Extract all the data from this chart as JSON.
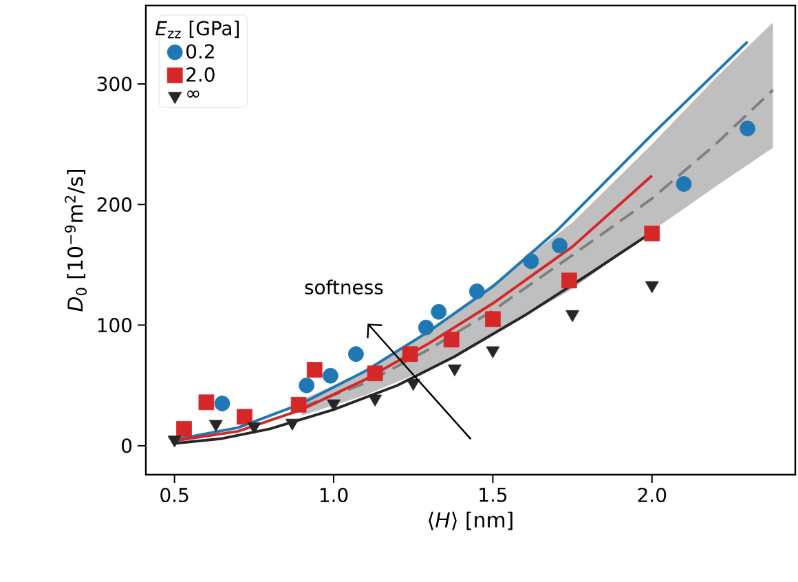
{
  "chart_data": {
    "type": "scatter",
    "xlabel": "⟨*H*⟩ [nm]",
    "ylabel": "*D*$_{0}$ [10$^{−9}$m$^{2}$/s]",
    "legend_title": "*E*$_{zz}$ [GPa]",
    "annotations": [
      "softness"
    ],
    "xlim": [
      0.41,
      2.45
    ],
    "ylim": [
      -24,
      365
    ],
    "xticks": [
      0.5,
      {
        "value": 1.0,
        "label": "1.0"
      },
      1.5,
      {
        "value": 2.0,
        "label": "2.0"
      }
    ],
    "yticks": [
      0,
      100,
      200,
      300
    ],
    "grid": false,
    "legend": "top left",
    "series": [
      {
        "type": "line",
        "color": "#808080",
        "line_style": "dashed",
        "x": [
          0.9,
          1.1,
          1.3,
          1.5,
          1.75,
          2.0,
          2.2,
          2.38
        ],
        "values": [
          32,
          52,
          80,
          112,
          158,
          205,
          250,
          295
        ],
        "lower": [
          25,
          42,
          64,
          92,
          130,
          178,
          215,
          247
        ],
        "upper": [
          38,
          62,
          96,
          134,
          185,
          250,
          305,
          351
        ]
      },
      {
        "type": "line",
        "color": "#1f77b4",
        "line_style": "solid",
        "x": [
          0.5,
          0.7,
          0.9,
          1.1,
          1.3,
          1.5,
          1.7,
          2.0,
          2.3
        ],
        "values": [
          5,
          15,
          35,
          62,
          95,
          132,
          178,
          258,
          335
        ]
      },
      {
        "type": "line",
        "color": "#d62728",
        "line_style": "solid",
        "x": [
          0.5,
          0.7,
          0.9,
          1.1,
          1.3,
          1.5,
          1.75,
          2.0
        ],
        "values": [
          4,
          12,
          30,
          55,
          85,
          118,
          165,
          224
        ]
      },
      {
        "type": "line",
        "color": "#262626",
        "line_style": "solid",
        "x": [
          0.5,
          0.65,
          0.8,
          1.0,
          1.2,
          1.38,
          1.6,
          1.8,
          2.0
        ],
        "values": [
          2,
          6,
          14,
          30,
          50,
          74,
          108,
          142,
          177
        ]
      },
      {
        "name": "0.2",
        "marker": "circle",
        "color": "#1f77b4",
        "x": [
          0.65,
          0.915,
          0.99,
          1.07,
          1.29,
          1.33,
          1.45,
          1.62,
          1.71,
          2.1,
          2.3
        ],
        "values": [
          35,
          50,
          58,
          76,
          98,
          111,
          128,
          153,
          166,
          217,
          263
        ]
      },
      {
        "name": "2.0",
        "marker": "square",
        "color": "#d62728",
        "x": [
          0.53,
          0.6,
          0.72,
          0.89,
          0.94,
          1.13,
          1.24,
          1.37,
          1.5,
          1.74,
          2.0
        ],
        "values": [
          14,
          36,
          24,
          34,
          63,
          60,
          76,
          88,
          105,
          137,
          176
        ]
      },
      {
        "name": "∞",
        "marker": "triangle",
        "color": "#262626",
        "x": [
          0.5,
          0.63,
          0.75,
          0.87,
          1.0,
          1.13,
          1.25,
          1.38,
          1.5,
          1.75,
          2.0
        ],
        "values": [
          5,
          18,
          16,
          19,
          35,
          39,
          52,
          64,
          79,
          109,
          133
        ]
      }
    ]
  }
}
